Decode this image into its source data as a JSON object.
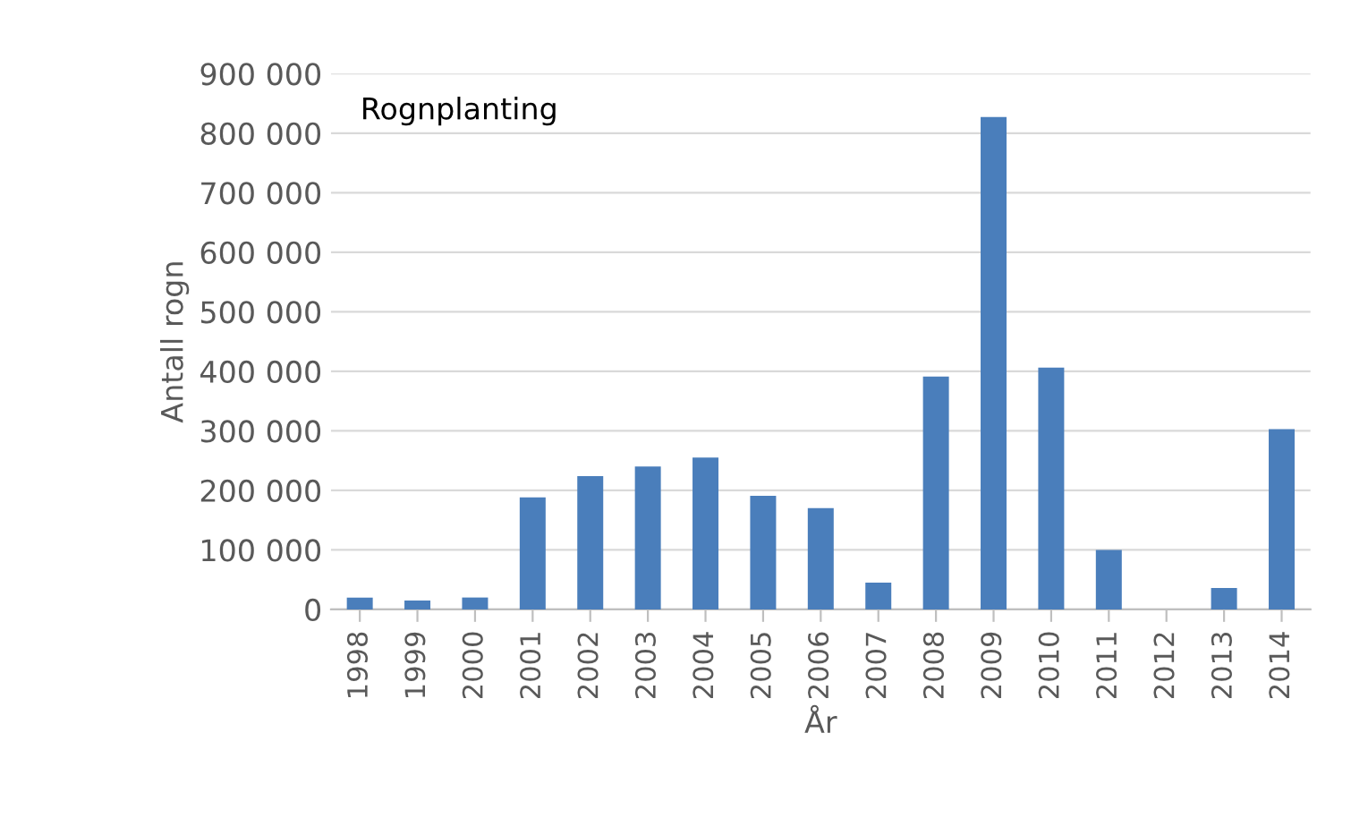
{
  "chart_data": {
    "type": "bar",
    "xlabel": "År",
    "ylabel": "Antall rogn",
    "annotations": [
      "Rognplanting"
    ],
    "categories": [
      "1998",
      "1999",
      "2000",
      "2001",
      "2002",
      "2003",
      "2004",
      "2005",
      "2006",
      "2007",
      "2008",
      "2009",
      "2010",
      "2011",
      "2012",
      "2013",
      "2014"
    ],
    "values": [
      20000,
      15000,
      20000,
      188000,
      224000,
      240000,
      255000,
      191000,
      170000,
      45000,
      391000,
      827000,
      406000,
      100000,
      0,
      36000,
      303000
    ],
    "color": "#4a7ebb",
    "ylim": [
      0,
      900000
    ],
    "yticks": [
      0,
      {
        "value": 100000,
        "label": "100 000"
      },
      {
        "value": 200000,
        "label": "200 000"
      },
      {
        "value": 300000,
        "label": "300 000"
      },
      {
        "value": 400000,
        "label": "400 000"
      },
      {
        "value": 500000,
        "label": "500 000"
      },
      {
        "value": 600000,
        "label": "600 000"
      },
      {
        "value": 700000,
        "label": "700 000"
      },
      {
        "value": 800000,
        "label": "800 000"
      },
      {
        "value": 900000,
        "label": "900 000"
      }
    ],
    "grid": "y",
    "legend": false
  }
}
